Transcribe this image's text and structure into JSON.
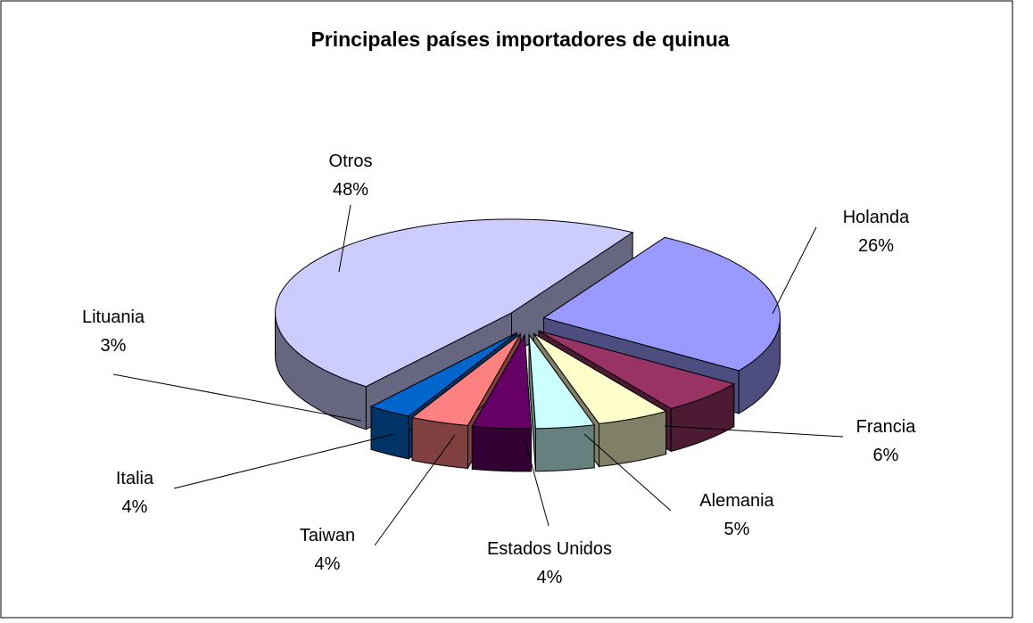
{
  "chart_data": {
    "type": "pie3d",
    "title": "Principales países importadores de quinua",
    "categories": [
      "Holanda",
      "Francia",
      "Alemania",
      "Estados Unidos",
      "Taiwan",
      "Italia",
      "Lituania",
      "Otros"
    ],
    "values": [
      26,
      6,
      5,
      4,
      4,
      4,
      3,
      48
    ],
    "value_labels": [
      "26%",
      "6%",
      "5%",
      "4%",
      "4%",
      "4%",
      "3%",
      "48%"
    ],
    "colors": [
      "#9999ff",
      "#993366",
      "#ffffcc",
      "#ccffff",
      "#660066",
      "#ff8080",
      "#0066cc",
      "#ccccff"
    ]
  }
}
